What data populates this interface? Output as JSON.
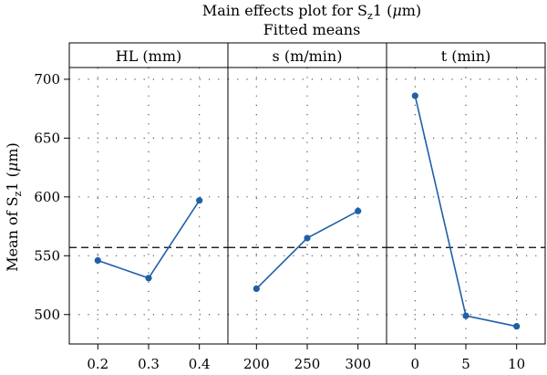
{
  "chart_data": {
    "type": "line",
    "title_main": "Main effects plot for S",
    "title_sub": "z",
    "title_tail": "1 (",
    "title_mu": "μ",
    "title_unit": "m)",
    "subtitle": "Fitted means",
    "ylabel_main": "Mean of S",
    "ylabel_sub": "z",
    "ylabel_tail": "1 (",
    "ylabel_mu": "μ",
    "ylabel_unit": "m)",
    "ylim": [
      475,
      710
    ],
    "yticks": [
      500,
      550,
      600,
      650,
      700
    ],
    "ytick_labels": [
      "500",
      "550",
      "600",
      "650",
      "700"
    ],
    "reference_line": 557,
    "grid": true,
    "line_color": "#1f5fa8",
    "panels": [
      {
        "name": "HL (mm)",
        "x": [
          "0.2",
          "0.3",
          "0.4"
        ],
        "values": [
          546,
          531,
          597
        ]
      },
      {
        "name": "s (m/min)",
        "x": [
          "200",
          "250",
          "300"
        ],
        "values": [
          522,
          565,
          588
        ]
      },
      {
        "name": "t (min)",
        "x": [
          "0",
          "5",
          "10"
        ],
        "values": [
          686,
          499,
          490
        ]
      }
    ]
  }
}
